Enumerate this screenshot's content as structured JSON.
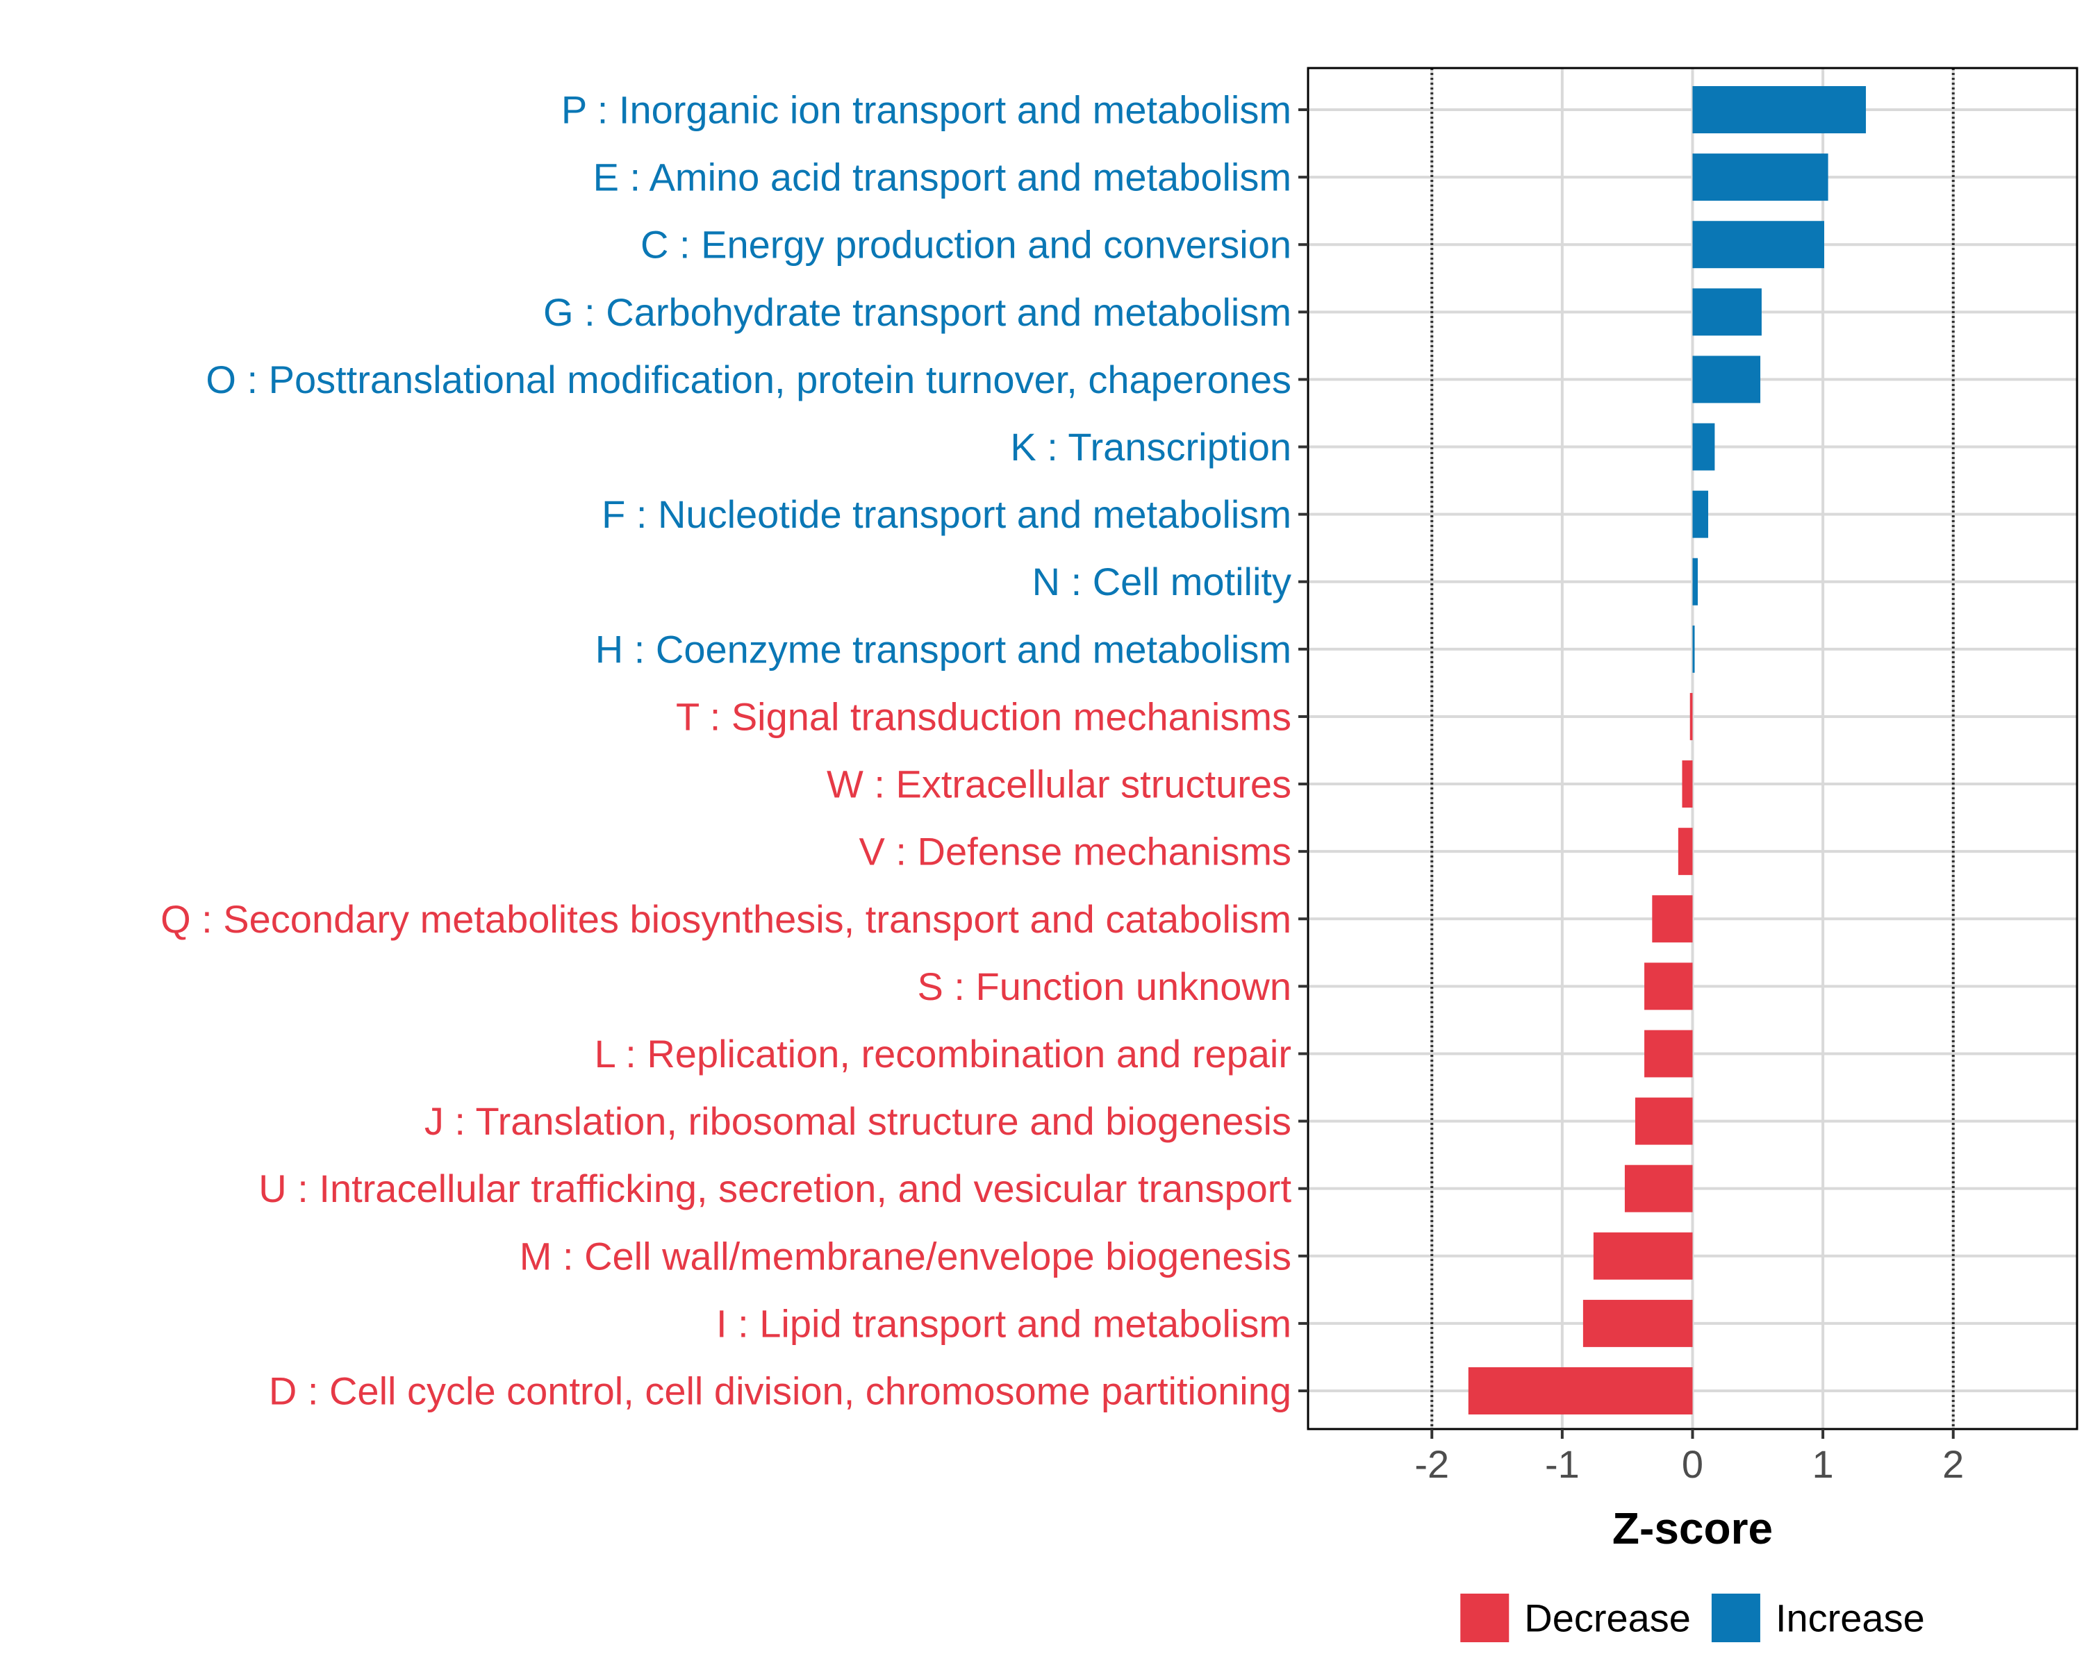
{
  "chart_data": {
    "type": "bar",
    "orientation": "horizontal",
    "xlabel": "Z-score",
    "ylabel": "",
    "xlim": [
      -2.95,
      2.95
    ],
    "xticks": [
      -2,
      -1,
      0,
      1,
      2
    ],
    "xtick_labels": [
      "-2",
      "-1",
      "0",
      "1",
      "2"
    ],
    "reference_lines": [
      -2,
      2
    ],
    "grid": true,
    "legend_position": "bottom",
    "legend": [
      {
        "label": "Decrease",
        "color": "#E63946"
      },
      {
        "label": "Increase",
        "color": "#0A77B5"
      }
    ],
    "colors": {
      "Decrease": "#E63946",
      "Increase": "#0A77B5"
    },
    "categories": [
      {
        "label": "P : Inorganic ion transport and metabolism",
        "value": 1.33,
        "direction": "Increase"
      },
      {
        "label": "E : Amino acid transport and metabolism",
        "value": 1.04,
        "direction": "Increase"
      },
      {
        "label": "C : Energy production and conversion",
        "value": 1.01,
        "direction": "Increase"
      },
      {
        "label": "G : Carbohydrate transport and metabolism",
        "value": 0.53,
        "direction": "Increase"
      },
      {
        "label": "O : Posttranslational modification, protein turnover, chaperones",
        "value": 0.52,
        "direction": "Increase"
      },
      {
        "label": "K : Transcription",
        "value": 0.17,
        "direction": "Increase"
      },
      {
        "label": "F : Nucleotide transport and metabolism",
        "value": 0.12,
        "direction": "Increase"
      },
      {
        "label": "N : Cell motility",
        "value": 0.04,
        "direction": "Increase"
      },
      {
        "label": "H : Coenzyme transport and metabolism",
        "value": 0.01,
        "direction": "Increase"
      },
      {
        "label": "T : Signal transduction mechanisms",
        "value": -0.02,
        "direction": "Decrease"
      },
      {
        "label": "W : Extracellular structures",
        "value": -0.08,
        "direction": "Decrease"
      },
      {
        "label": "V : Defense mechanisms",
        "value": -0.11,
        "direction": "Decrease"
      },
      {
        "label": "Q : Secondary metabolites biosynthesis, transport and catabolism",
        "value": -0.31,
        "direction": "Decrease"
      },
      {
        "label": "S : Function unknown",
        "value": -0.37,
        "direction": "Decrease"
      },
      {
        "label": "L : Replication, recombination and repair",
        "value": -0.37,
        "direction": "Decrease"
      },
      {
        "label": "J : Translation, ribosomal structure and biogenesis",
        "value": -0.44,
        "direction": "Decrease"
      },
      {
        "label": "U : Intracellular trafficking, secretion, and vesicular transport",
        "value": -0.52,
        "direction": "Decrease"
      },
      {
        "label": "M : Cell wall/membrane/envelope biogenesis",
        "value": -0.76,
        "direction": "Decrease"
      },
      {
        "label": "I : Lipid transport and metabolism",
        "value": -0.84,
        "direction": "Decrease"
      },
      {
        "label": "D : Cell cycle control, cell division, chromosome partitioning",
        "value": -1.72,
        "direction": "Decrease"
      }
    ]
  }
}
